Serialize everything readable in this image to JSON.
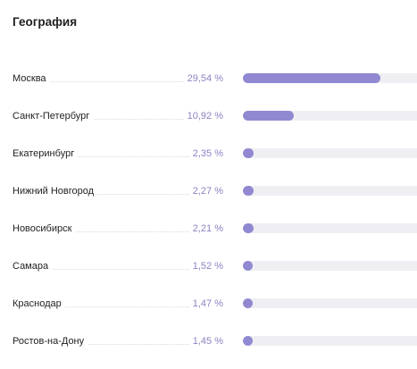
{
  "widget": {
    "title": "География",
    "colors": {
      "bar_fill": "#9089d1",
      "bar_track": "#efeff3",
      "percent_text": "#8a84c4"
    },
    "rows": [
      {
        "city": "Москва",
        "percent_label": "29,54 %",
        "value": 29.54
      },
      {
        "city": "Санкт-Петербург",
        "percent_label": "10,92 %",
        "value": 10.92
      },
      {
        "city": "Екатеринбург",
        "percent_label": "2,35 %",
        "value": 2.35
      },
      {
        "city": "Нижний Новгород",
        "percent_label": "2,27 %",
        "value": 2.27
      },
      {
        "city": "Новосибирск",
        "percent_label": "2,21 %",
        "value": 2.21
      },
      {
        "city": "Самара",
        "percent_label": "1,52 %",
        "value": 1.52
      },
      {
        "city": "Краснодар",
        "percent_label": "1,47 %",
        "value": 1.47
      },
      {
        "city": "Ростов-на-Дону",
        "percent_label": "1,45 %",
        "value": 1.45
      }
    ]
  }
}
